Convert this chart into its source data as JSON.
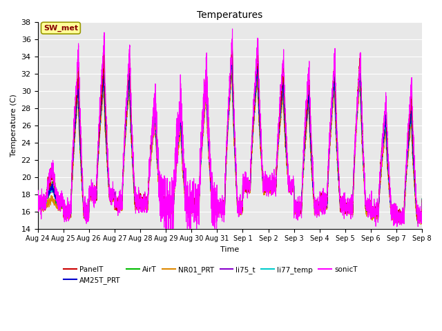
{
  "title": "Temperatures",
  "xlabel": "Time",
  "ylabel": "Temperature (C)",
  "ylim": [
    14,
    38
  ],
  "yticks": [
    14,
    16,
    18,
    20,
    22,
    24,
    26,
    28,
    30,
    32,
    34,
    36,
    38
  ],
  "xtick_labels": [
    "Aug 24",
    "Aug 25",
    "Aug 26",
    "Aug 27",
    "Aug 28",
    "Aug 29",
    "Aug 30",
    "Aug 31",
    "Sep 1",
    "Sep 2",
    "Sep 3",
    "Sep 4",
    "Sep 5",
    "Sep 6",
    "Sep 7",
    "Sep 8"
  ],
  "series": {
    "PanelT": {
      "color": "#cc0000",
      "lw": 0.8
    },
    "AM25T_PRT": {
      "color": "#0000cc",
      "lw": 0.8
    },
    "AirT": {
      "color": "#00bb00",
      "lw": 0.8
    },
    "NR01_PRT": {
      "color": "#dd8800",
      "lw": 0.8
    },
    "li75_t": {
      "color": "#8800cc",
      "lw": 0.8
    },
    "li77_temp": {
      "color": "#00cccc",
      "lw": 0.8
    },
    "sonicT": {
      "color": "#ff00ff",
      "lw": 0.8
    }
  },
  "annotation_text": "SW_met",
  "annotation_box_color": "#ffff99",
  "annotation_text_color": "#880000",
  "annotation_border_color": "#999900",
  "axes_background": "#e8e8e8",
  "fig_background": "#ffffff",
  "legend_entries": [
    "PanelT",
    "AM25T_PRT",
    "AirT",
    "NR01_PRT",
    "li75_t",
    "li77_temp",
    "sonicT"
  ],
  "legend_colors": [
    "#cc0000",
    "#0000cc",
    "#00bb00",
    "#dd8800",
    "#8800cc",
    "#00cccc",
    "#ff00ff"
  ]
}
